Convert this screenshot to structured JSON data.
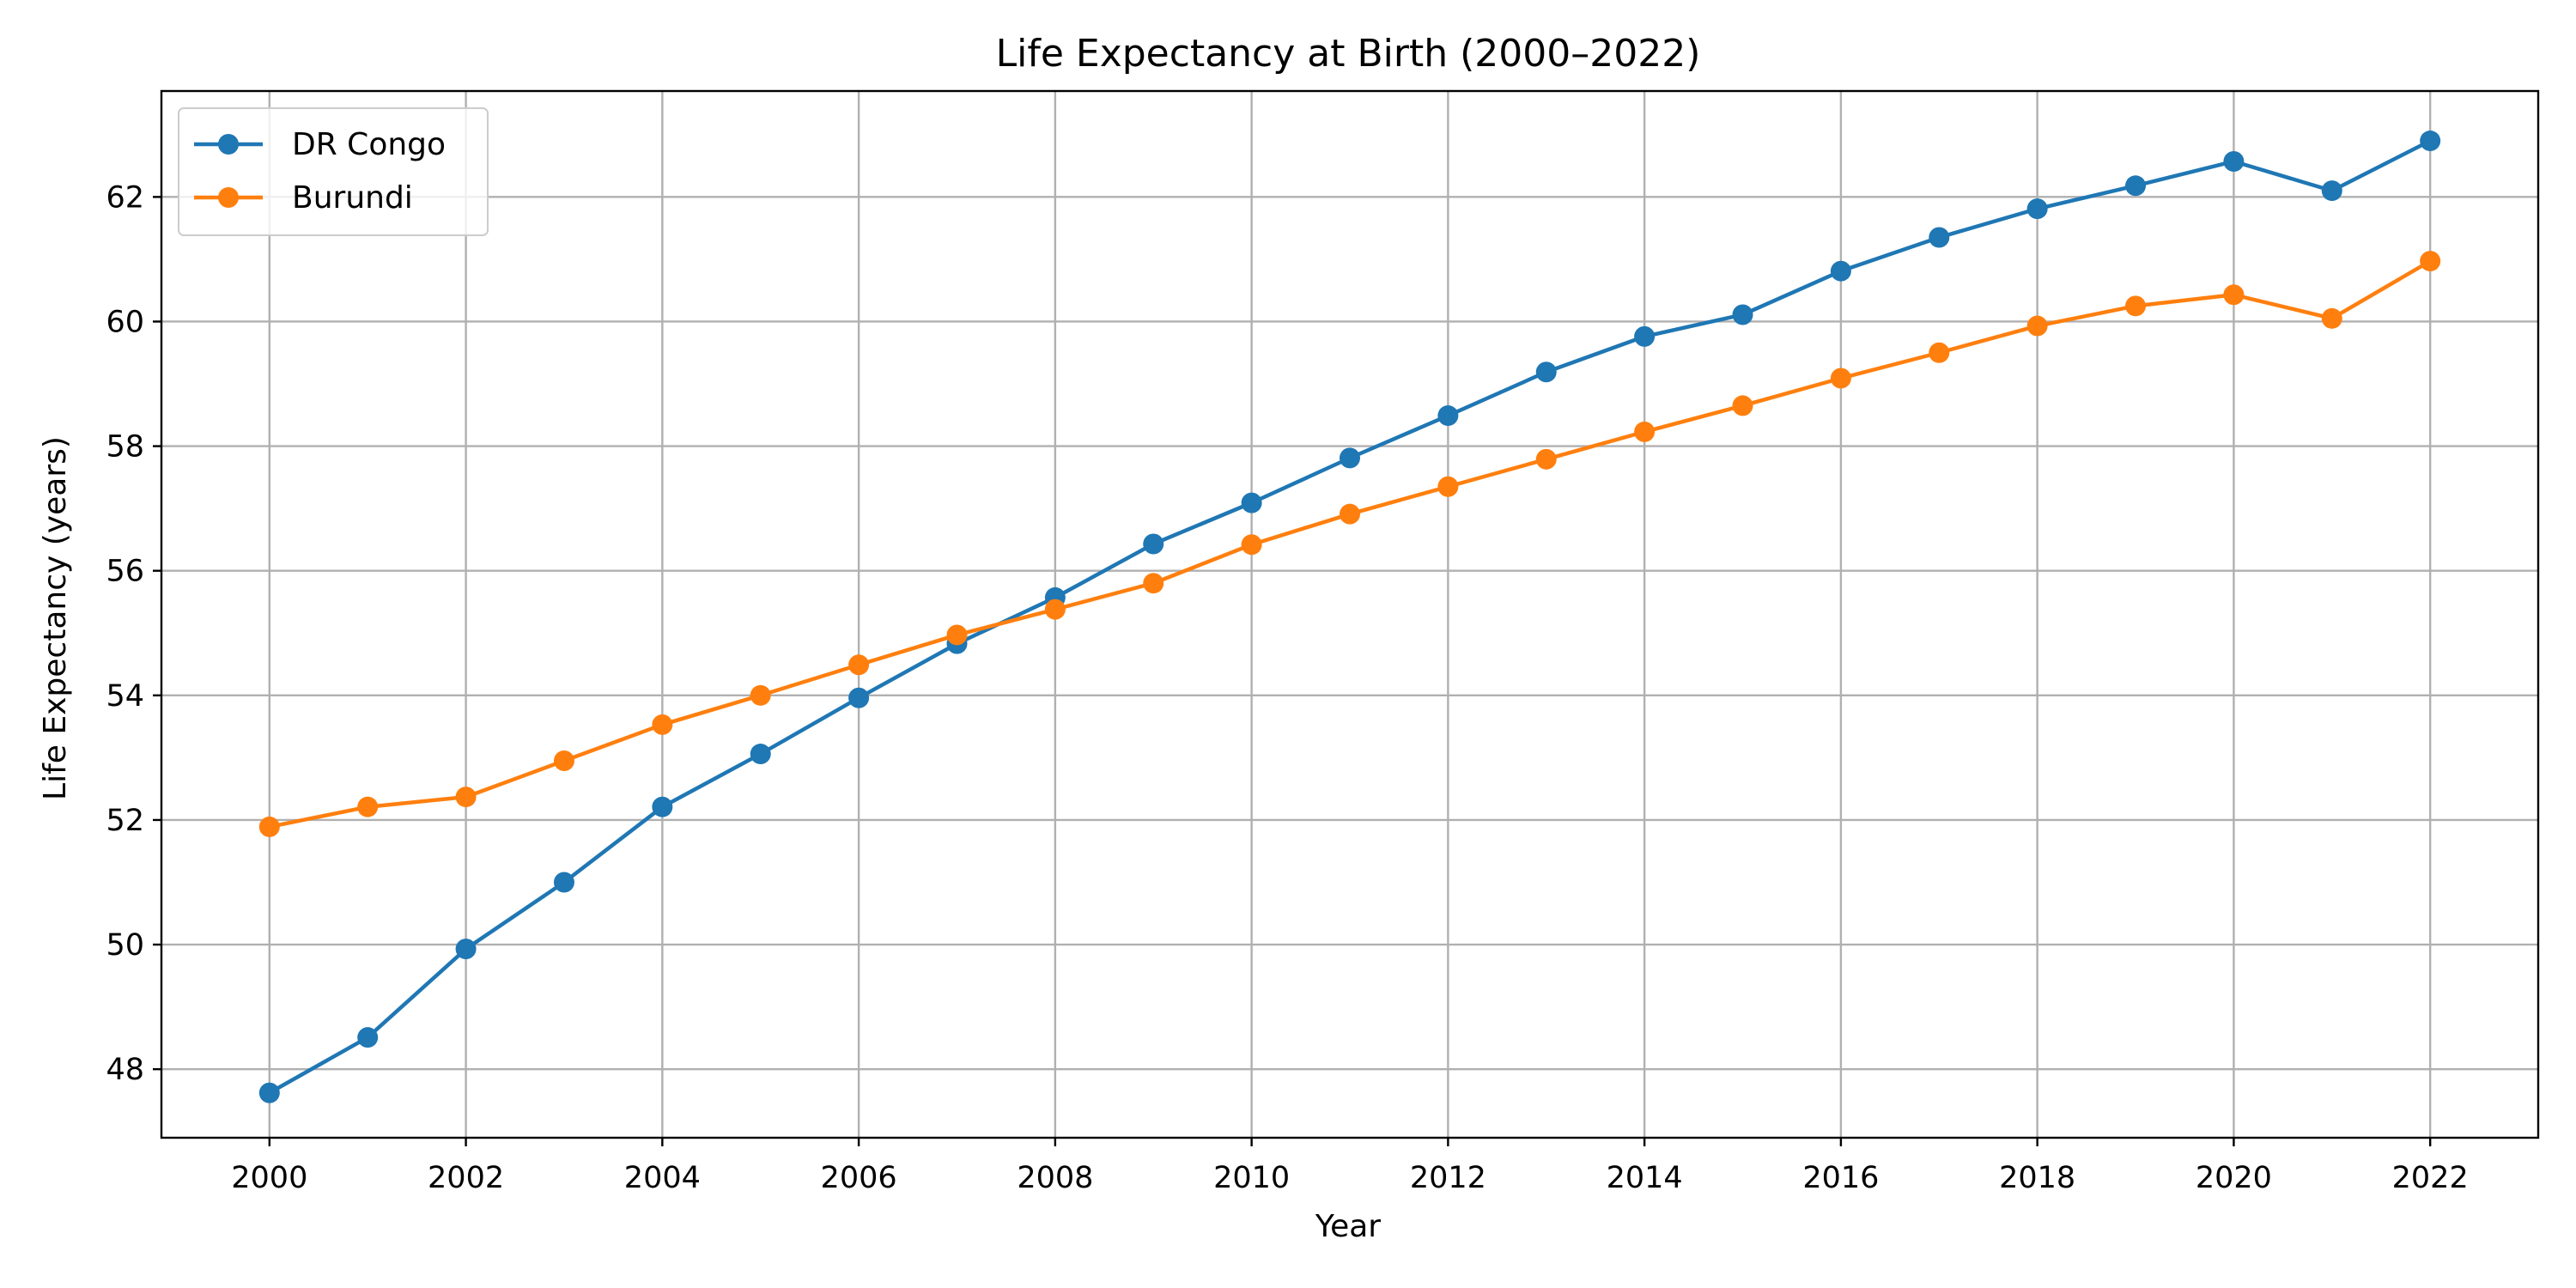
{
  "chart_data": {
    "type": "line",
    "title": "Life Expectancy at Birth (2000–2022)",
    "xlabel": "Year",
    "ylabel": "Life Expectancy (years)",
    "x": [
      2000,
      2001,
      2002,
      2003,
      2004,
      2005,
      2006,
      2007,
      2008,
      2009,
      2010,
      2011,
      2012,
      2013,
      2014,
      2015,
      2016,
      2017,
      2018,
      2019,
      2020,
      2021,
      2022
    ],
    "xlim": [
      1998.9,
      2023.1
    ],
    "ylim": [
      46.9,
      63.7
    ],
    "xticks": [
      2000,
      2002,
      2004,
      2006,
      2008,
      2010,
      2012,
      2014,
      2016,
      2018,
      2020,
      2022
    ],
    "yticks": [
      48,
      50,
      52,
      54,
      56,
      58,
      60,
      62
    ],
    "grid": true,
    "legend_position": "top-left",
    "series": [
      {
        "name": "DR Congo",
        "color": "#1f77b4",
        "marker": "circle",
        "values": [
          47.62,
          48.51,
          49.93,
          51.0,
          52.21,
          53.06,
          53.96,
          54.83,
          55.57,
          56.43,
          57.09,
          57.81,
          58.49,
          59.19,
          59.76,
          60.11,
          60.81,
          61.35,
          61.81,
          62.18,
          62.57,
          62.1,
          62.9
        ]
      },
      {
        "name": "Burundi",
        "color": "#ff7f0e",
        "marker": "circle",
        "values": [
          51.89,
          52.21,
          52.37,
          52.95,
          53.53,
          54.0,
          54.49,
          54.97,
          55.38,
          55.8,
          56.42,
          56.91,
          57.35,
          57.79,
          58.23,
          58.65,
          59.09,
          59.5,
          59.93,
          60.25,
          60.43,
          60.05,
          60.97
        ]
      }
    ]
  }
}
